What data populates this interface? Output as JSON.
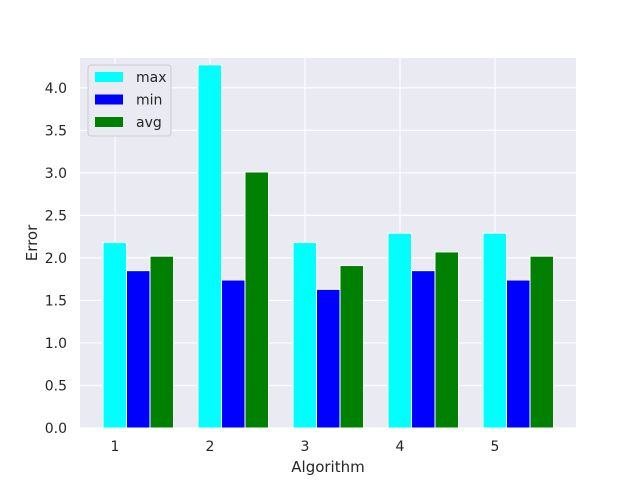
{
  "chart_data": {
    "type": "bar",
    "categories": [
      "1",
      "2",
      "3",
      "4",
      "5"
    ],
    "series": [
      {
        "name": "max",
        "color": "#00ffff",
        "values": [
          2.18,
          4.27,
          2.18,
          2.29,
          2.29
        ]
      },
      {
        "name": "min",
        "color": "#0000ff",
        "values": [
          1.85,
          1.74,
          1.63,
          1.85,
          1.74
        ]
      },
      {
        "name": "avg",
        "color": "#008000",
        "values": [
          2.02,
          3.01,
          1.91,
          2.07,
          2.02
        ]
      }
    ],
    "xlabel": "Algorithm",
    "ylabel": "Error",
    "ylim": [
      0,
      4.35
    ],
    "yticks": [
      "0.0",
      "0.5",
      "1.0",
      "1.5",
      "2.0",
      "2.5",
      "3.0",
      "3.5",
      "4.0"
    ],
    "grid": true,
    "background": "#eaeaf2",
    "legend_position": "top-left"
  }
}
